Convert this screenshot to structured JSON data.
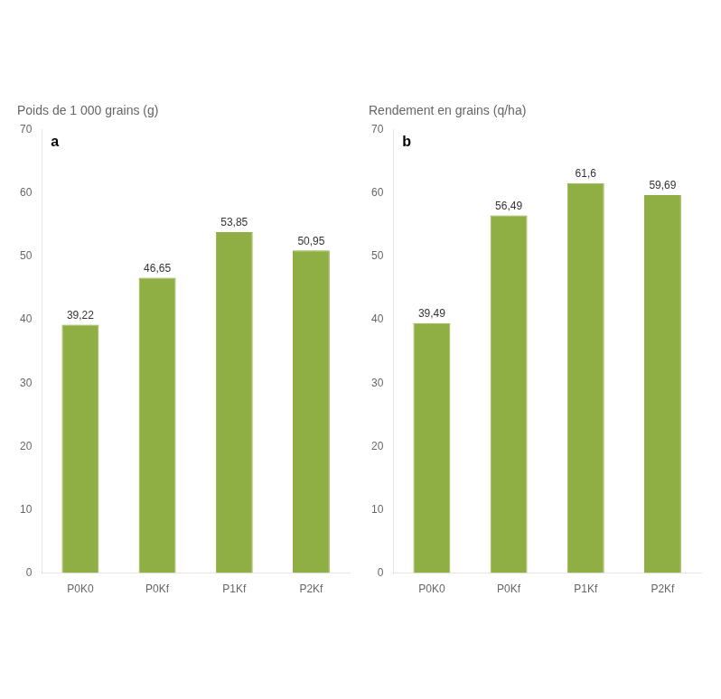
{
  "chart_data": [
    {
      "type": "bar",
      "title": "Poids de 1 000 grains (g)",
      "annotations": [
        "a"
      ],
      "categories": [
        "P0K0",
        "P0Kf",
        "P1Kf",
        "P2Kf"
      ],
      "values": [
        39.22,
        46.65,
        53.85,
        50.95
      ],
      "value_labels": [
        "39,22",
        "46,65",
        "53,85",
        "50,95"
      ],
      "data_labels": true,
      "color": "#8faf44",
      "ylim": [
        0,
        70
      ],
      "yticks": [
        0,
        10,
        20,
        30,
        40,
        50,
        60,
        70
      ],
      "grid": false
    },
    {
      "type": "bar",
      "title": "Rendement en grains (q/ha)",
      "annotations": [
        "b"
      ],
      "categories": [
        "P0K0",
        "P0Kf",
        "P1Kf",
        "P2Kf"
      ],
      "values": [
        39.49,
        56.49,
        61.6,
        59.69
      ],
      "value_labels": [
        "39,49",
        "56,49",
        "61,6",
        "59,69"
      ],
      "data_labels": true,
      "color": "#8faf44",
      "ylim": [
        0,
        70
      ],
      "yticks": [
        0,
        10,
        20,
        30,
        40,
        50,
        60,
        70
      ],
      "grid": false
    }
  ]
}
